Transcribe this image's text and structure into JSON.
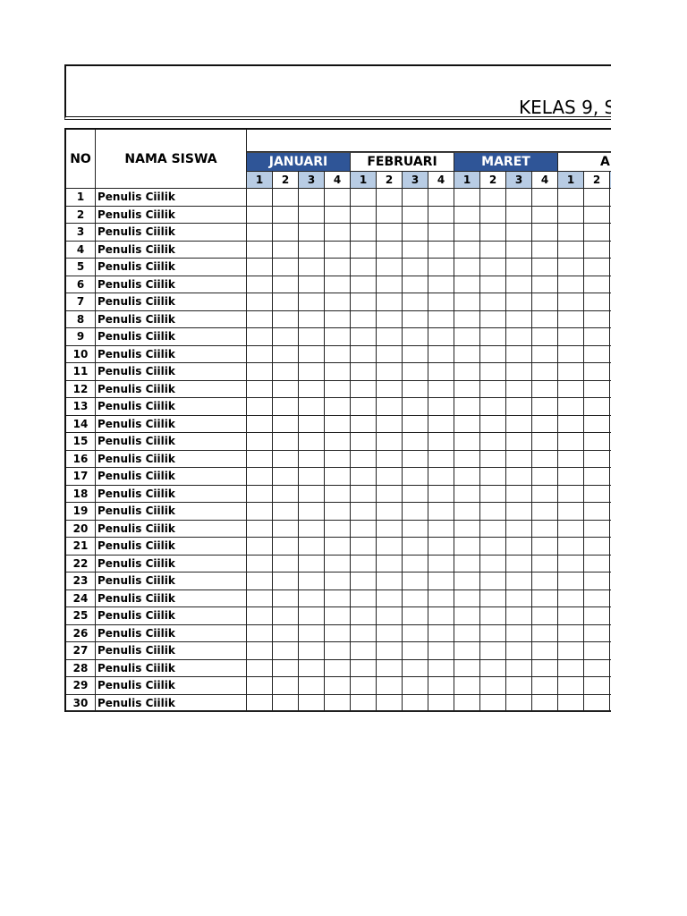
{
  "title": "KELAS 9, S",
  "headers": {
    "no": "NO",
    "name": "NAMA SISWA"
  },
  "months": [
    {
      "label": "JANUARI",
      "highlight": true
    },
    {
      "label": "FEBRUARI",
      "highlight": false
    },
    {
      "label": "MARET",
      "highlight": true
    },
    {
      "label": "AP",
      "highlight": false
    }
  ],
  "weeks": [
    "1",
    "2",
    "3",
    "4"
  ],
  "colors": {
    "month_highlight": "#2f5597",
    "week_shade": "#b8cce4"
  },
  "students": [
    {
      "no": "1",
      "name": "Penulis Ciilik"
    },
    {
      "no": "2",
      "name": "Penulis Ciilik"
    },
    {
      "no": "3",
      "name": "Penulis Ciilik"
    },
    {
      "no": "4",
      "name": "Penulis Ciilik"
    },
    {
      "no": "5",
      "name": "Penulis Ciilik"
    },
    {
      "no": "6",
      "name": "Penulis Ciilik"
    },
    {
      "no": "7",
      "name": "Penulis Ciilik"
    },
    {
      "no": "8",
      "name": "Penulis Ciilik"
    },
    {
      "no": "9",
      "name": "Penulis Ciilik"
    },
    {
      "no": "10",
      "name": "Penulis Ciilik"
    },
    {
      "no": "11",
      "name": "Penulis Ciilik"
    },
    {
      "no": "12",
      "name": "Penulis Ciilik"
    },
    {
      "no": "13",
      "name": "Penulis Ciilik"
    },
    {
      "no": "14",
      "name": "Penulis Ciilik"
    },
    {
      "no": "15",
      "name": "Penulis Ciilik"
    },
    {
      "no": "16",
      "name": "Penulis Ciilik"
    },
    {
      "no": "17",
      "name": "Penulis Ciilik"
    },
    {
      "no": "18",
      "name": "Penulis Ciilik"
    },
    {
      "no": "19",
      "name": "Penulis Ciilik"
    },
    {
      "no": "20",
      "name": "Penulis Ciilik"
    },
    {
      "no": "21",
      "name": "Penulis Ciilik"
    },
    {
      "no": "22",
      "name": "Penulis Ciilik"
    },
    {
      "no": "23",
      "name": "Penulis Ciilik"
    },
    {
      "no": "24",
      "name": "Penulis Ciilik"
    },
    {
      "no": "25",
      "name": "Penulis Ciilik"
    },
    {
      "no": "26",
      "name": "Penulis Ciilik"
    },
    {
      "no": "27",
      "name": "Penulis Ciilik"
    },
    {
      "no": "28",
      "name": "Penulis Ciilik"
    },
    {
      "no": "29",
      "name": "Penulis Ciilik"
    },
    {
      "no": "30",
      "name": "Penulis Ciilik"
    }
  ]
}
